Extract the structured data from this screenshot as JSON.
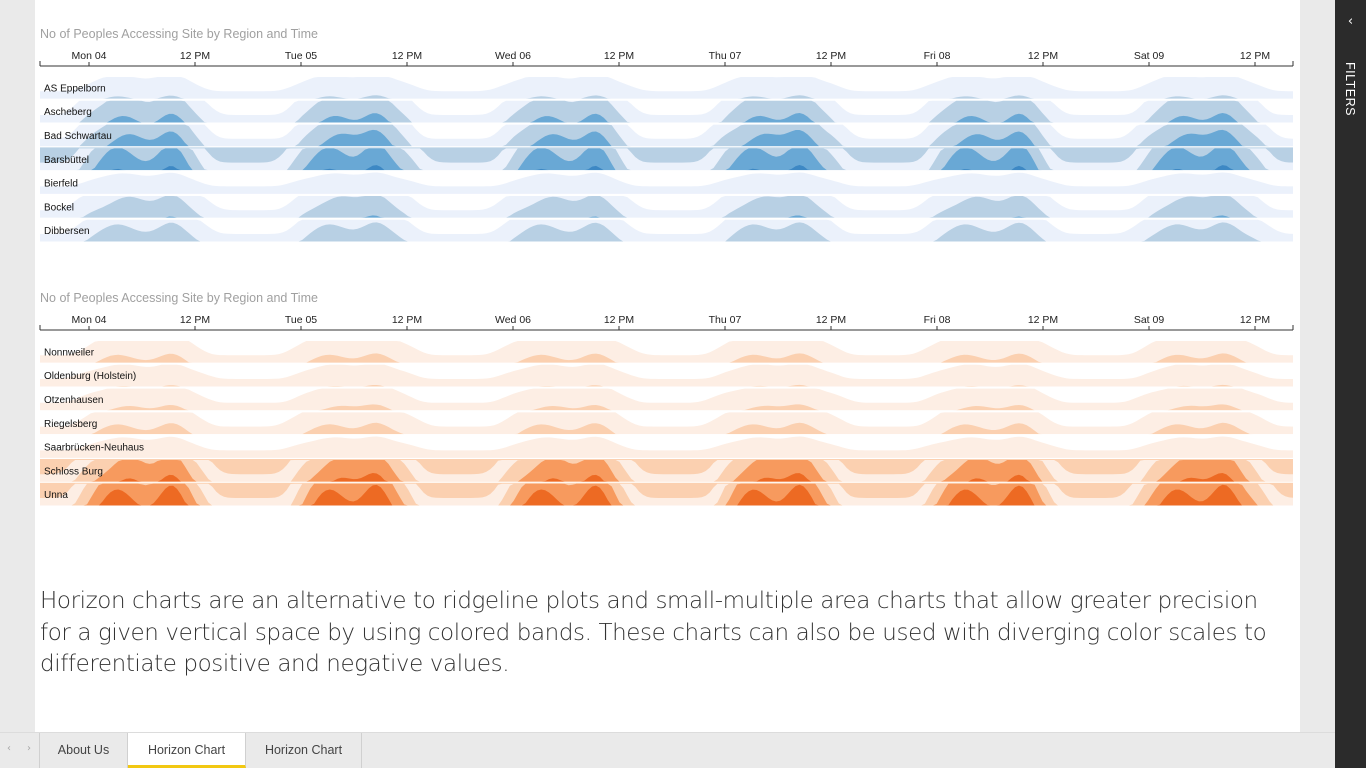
{
  "charts": [
    {
      "title": "No of Peoples Accessing Site by Region and Time",
      "ticks": [
        "Mon 04",
        "12 PM",
        "Tue 05",
        "12 PM",
        "Wed 06",
        "12 PM",
        "Thu 07",
        "12 PM",
        "Fri 08",
        "12 PM",
        "Sat 09",
        "12 PM"
      ],
      "colors": [
        "#ebf1fb",
        "#b8d0e4",
        "#69a8d5",
        "#3d88c4",
        "#1760a8"
      ],
      "rows": [
        {
          "label": "AS Eppelborn",
          "level": 0.9
        },
        {
          "label": "Ascheberg",
          "level": 2.3
        },
        {
          "label": "Bad Schwartau",
          "level": 2.6
        },
        {
          "label": "Barsbüttel",
          "level": 3.2
        },
        {
          "label": "Bierfeld",
          "level": 0.7
        },
        {
          "label": "Bockel",
          "level": 1.9
        },
        {
          "label": "Dibbersen",
          "level": 1.7
        }
      ]
    },
    {
      "title": "No of Peoples Accessing Site by Region and Time",
      "ticks": [
        "Mon 04",
        "12 PM",
        "Tue 05",
        "12 PM",
        "Wed 06",
        "12 PM",
        "Thu 07",
        "12 PM",
        "Fri 08",
        "12 PM",
        "Sat 09",
        "12 PM"
      ],
      "colors": [
        "#fdeee4",
        "#fbd0b0",
        "#f79a5e",
        "#ed6a23",
        "#9e3008"
      ],
      "rows": [
        {
          "label": "Nonnweiler",
          "level": 1.2
        },
        {
          "label": "Oldenburg (Holstein)",
          "level": 0.8
        },
        {
          "label": "Otzenhausen",
          "level": 1.0
        },
        {
          "label": "Riegelsberg",
          "level": 1.3
        },
        {
          "label": "Saarbrücken-Neuhaus",
          "level": 0.7
        },
        {
          "label": "Schloss Burg",
          "level": 3.3
        },
        {
          "label": "Unna",
          "level": 4.0
        }
      ]
    }
  ],
  "description": "Horizon charts are an alternative to ridgeline plots and small-multiple area charts that allow greater precision for a given vertical space by using colored bands. These charts can also be used with diverging color scales to differentiate positive and negative values.",
  "tabs": [
    {
      "label": "About Us",
      "active": false
    },
    {
      "label": "Horizon Chart",
      "active": true
    },
    {
      "label": "Horizon Chart",
      "active": false
    }
  ],
  "nav": {
    "prev_icon": "‹",
    "next_icon": "›"
  },
  "filters": {
    "label": "FILTERS",
    "chevron": "‹"
  }
}
